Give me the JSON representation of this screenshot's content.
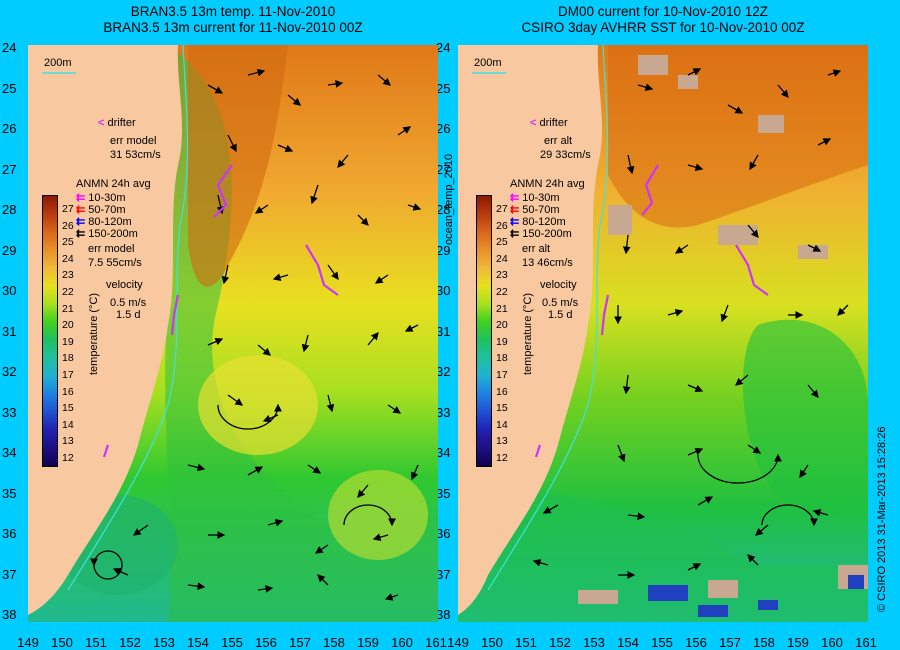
{
  "left_title": {
    "line1": "BRAN3.5 13m temp. 11-Nov-2010",
    "line2": "BRAN3.5 13m current for 11-Nov-2010 00Z"
  },
  "right_title": {
    "line1": "DM00 current for 10-Nov-2010 12Z",
    "line2": "CSIRO 3day AVHRR SST for 10-Nov-2010 00Z"
  },
  "isobath_label": "200m",
  "left_legend": {
    "drifter": "drifter",
    "err_model_1": "err model",
    "err_model_1_val": "31 53cm/s",
    "anmn": "ANMN 24h avg",
    "depths": [
      "10-30m",
      "50-70m",
      "80-120m",
      "150-200m"
    ],
    "depth_colors": [
      "#ff00ff",
      "#ff0000",
      "#0000ff",
      "#000000"
    ],
    "err_model_2": "err model",
    "err_model_2_val": "7.5 55cm/s",
    "velocity": "velocity",
    "velocity_val": "0.5 m/s",
    "duration": "1.5 d"
  },
  "right_legend": {
    "drifter": "drifter",
    "err_alt_1": "err alt",
    "err_alt_1_val": "29 33cm/s",
    "anmn": "ANMN 24h avg",
    "depths": [
      "10-30m",
      "50-70m",
      "80-120m",
      "150-200m"
    ],
    "err_alt_2": "err alt",
    "err_alt_2_val": "13 46cm/s",
    "velocity": "velocity",
    "velocity_val": "0.5 m/s",
    "duration": "1.5 d"
  },
  "colorbar": {
    "ticks": [
      "27",
      "26",
      "25",
      "24",
      "23",
      "22",
      "21",
      "20",
      "19",
      "18",
      "17",
      "16",
      "15",
      "14",
      "13",
      "12"
    ],
    "label": "temperature (°C)",
    "colors": [
      "#8b1a00",
      "#b83a10",
      "#d9661a",
      "#e8902a",
      "#f0b83a",
      "#e6e020",
      "#a8e020",
      "#40d020",
      "#20c060",
      "#20c0a0",
      "#20b0d0",
      "#2080e0",
      "#2050d0",
      "#2020b0",
      "#201080",
      "#100050"
    ]
  },
  "y_ticks": [
    "24",
    "25",
    "26",
    "27",
    "28",
    "29",
    "30",
    "31",
    "32",
    "33",
    "34",
    "35",
    "36",
    "37",
    "38"
  ],
  "x_ticks": [
    "149",
    "150",
    "151",
    "152",
    "153",
    "154",
    "155",
    "156",
    "157",
    "158",
    "159",
    "160",
    "161"
  ],
  "center_vertical_label": "ocean_temp_2010",
  "credit": "© CSIRO 2013   31-Mar-2013 15:28:26"
}
